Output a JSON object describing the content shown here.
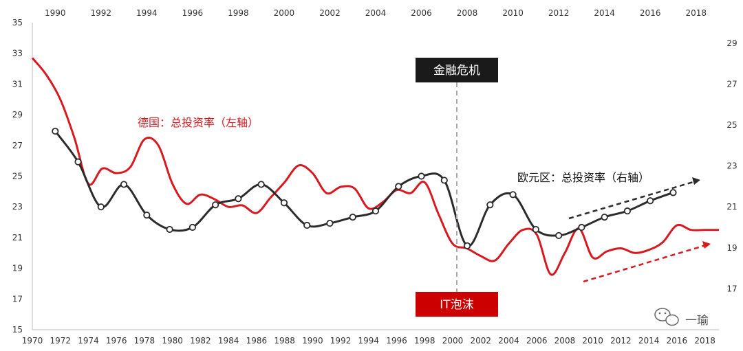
{
  "chart_data": {
    "type": "line",
    "axes": {
      "bottom_x": {
        "range": [
          1970,
          2019
        ],
        "ticks": [
          "1970",
          "1972",
          "1974",
          "1976",
          "1978",
          "1980",
          "1982",
          "1984",
          "1986",
          "1988",
          "1990",
          "1992",
          "1994",
          "1996",
          "1998",
          "2000",
          "2002",
          "2004",
          "2006",
          "2008",
          "2010",
          "2012",
          "2014",
          "2016",
          "2018"
        ]
      },
      "top_x": {
        "range": [
          1989,
          2019
        ],
        "ticks": [
          "1990",
          "1992",
          "1994",
          "1996",
          "1998",
          "2000",
          "2002",
          "2004",
          "2006",
          "2008",
          "2010",
          "2012",
          "2014",
          "2016",
          "2018"
        ]
      },
      "left_y": {
        "range": [
          15,
          35
        ],
        "ticks": [
          "15",
          "17",
          "19",
          "21",
          "23",
          "25",
          "27",
          "29",
          "31",
          "33",
          "35"
        ]
      },
      "right_y": {
        "range": [
          15,
          30
        ],
        "ticks": [
          "17",
          "19",
          "21",
          "23",
          "25",
          "27",
          "29"
        ]
      }
    },
    "series": [
      {
        "name": "德国：总投资率（左轴）",
        "axis": "left_bottom",
        "color": "#d71920",
        "x": [
          1970,
          1971,
          1972,
          1973,
          1974,
          1975,
          1976,
          1977,
          1978,
          1979,
          1980,
          1981,
          1982,
          1983,
          1984,
          1985,
          1986,
          1987,
          1988,
          1989,
          1990,
          1991,
          1992,
          1993,
          1994,
          1995,
          1996,
          1997,
          1998,
          1999,
          2000,
          2001,
          2002,
          2003,
          2004,
          2005,
          2006,
          2007,
          2008,
          2009,
          2010,
          2011,
          2012,
          2013,
          2014,
          2015,
          2016,
          2017,
          2018,
          2019
        ],
        "y": [
          32.7,
          31.6,
          30.0,
          27.5,
          24.5,
          25.5,
          25.2,
          25.6,
          27.4,
          27.0,
          24.5,
          23.2,
          23.8,
          23.5,
          23.0,
          23.1,
          22.6,
          23.6,
          24.6,
          25.7,
          25.2,
          23.9,
          24.3,
          24.2,
          22.9,
          23.3,
          24.1,
          23.9,
          24.6,
          22.5,
          20.6,
          20.3,
          19.8,
          19.5,
          20.6,
          21.5,
          21.2,
          18.6,
          20.0,
          21.6,
          19.7,
          20.1,
          20.3,
          20.0,
          20.2,
          20.7,
          21.8,
          21.5,
          21.5,
          21.5
        ]
      },
      {
        "name": "欧元区：总投资率（右轴）",
        "axis": "right_top",
        "color": "#2b2b2b",
        "x": [
          1990,
          1991,
          1992,
          1993,
          1994,
          1995,
          1996,
          1997,
          1998,
          1999,
          2000,
          2001,
          2002,
          2003,
          2004,
          2005,
          2006,
          2007,
          2008,
          2009,
          2010,
          2011,
          2012,
          2013,
          2014,
          2015,
          2016,
          2017
        ],
        "y": [
          24.7,
          23.2,
          21.0,
          22.1,
          20.6,
          19.9,
          20.0,
          21.1,
          21.4,
          22.1,
          21.2,
          20.1,
          20.2,
          20.5,
          20.8,
          22.0,
          22.5,
          22.3,
          19.1,
          21.1,
          21.6,
          19.9,
          19.6,
          20.0,
          20.5,
          20.8,
          21.3,
          21.7
        ]
      }
    ],
    "annotations": {
      "germany_label": "德国：总投资率（左轴）",
      "eurozone_label": "欧元区：总投资率（右轴）",
      "crisis_label": "金融危机",
      "it_bubble_label": "IT泡沫",
      "crisis_year": 2008
    },
    "grid": false
  },
  "watermark": {
    "text": "一瑜"
  },
  "colors": {
    "red": "#d71920",
    "black": "#2b2b2b",
    "box_dark": "#1a1a1a",
    "box_red": "#cc0000"
  }
}
